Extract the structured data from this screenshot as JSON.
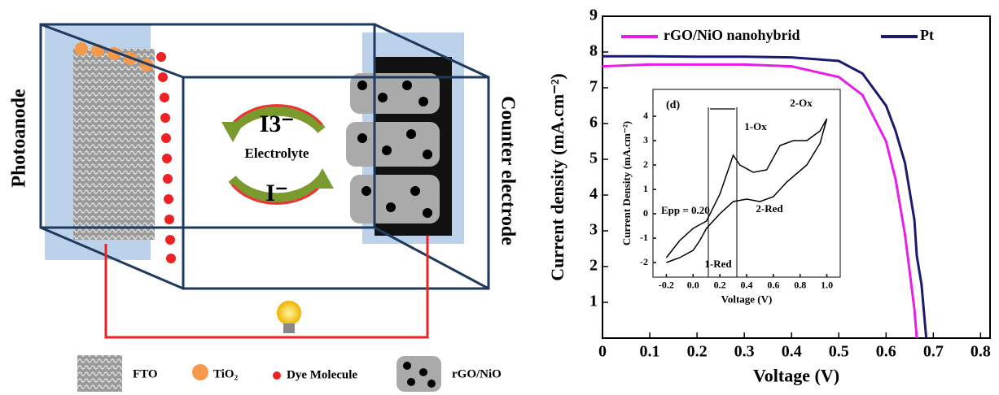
{
  "diagram": {
    "left_label": "Photoanode",
    "right_label": "Counter electrode",
    "center_label": "Electrolyte",
    "ion_top": "I3⁻",
    "ion_bottom": "I⁻",
    "legend": [
      "FTO",
      "TiO₂",
      "Dye Molecule",
      "rGO/NiO"
    ]
  },
  "chart_data": [
    {
      "type": "line",
      "xlabel": "Voltage (V)",
      "ylabel": "Current density (mA.cm⁻²)",
      "x": [
        0,
        0.1,
        0.2,
        0.3,
        0.4,
        0.45,
        0.5,
        0.55,
        0.6,
        0.62,
        0.64,
        0.66,
        0.665,
        0.675,
        0.685
      ],
      "series": [
        {
          "name": "rGO/NiO  nanohybrid",
          "color": "#e61ee6",
          "values": [
            7.6,
            7.65,
            7.65,
            7.65,
            7.6,
            7.45,
            7.3,
            6.8,
            5.5,
            4.45,
            2.9,
            0.8,
            0,
            null,
            null
          ]
        },
        {
          "name": "Pt",
          "color": "#1a1a6e",
          "values": [
            7.88,
            7.88,
            7.87,
            7.87,
            7.85,
            7.8,
            7.75,
            7.4,
            6.5,
            5.8,
            4.9,
            3.3,
            2.3,
            1.5,
            0
          ]
        }
      ],
      "xlim": [
        0,
        0.82
      ],
      "ylim": [
        0,
        9
      ],
      "xticks": [
        0,
        0.1,
        0.2,
        0.3,
        0.4,
        0.5,
        0.6,
        0.7,
        0.8
      ],
      "yticks": [
        1,
        2,
        3,
        4,
        5,
        6,
        7,
        8,
        9
      ]
    },
    {
      "type": "line",
      "panel": "(d)",
      "xlabel": "Voltage (V)",
      "ylabel": "Current Density (mA.cm⁻²)",
      "x": [
        -0.2,
        -0.1,
        0,
        0.1,
        0.2,
        0.3,
        0.35,
        0.45,
        0.55,
        0.65,
        0.75,
        0.85,
        0.95,
        1.0,
        0.95,
        0.85,
        0.7,
        0.6,
        0.5,
        0.4,
        0.3,
        0.2,
        0.1,
        0.05,
        0,
        -0.1,
        -0.2
      ],
      "series": [
        {
          "color": "#000000",
          "values": [
            -1.8,
            -1.1,
            -0.6,
            -0.3,
            0.8,
            2.4,
            2.0,
            1.7,
            1.8,
            2.8,
            3.0,
            3.0,
            3.4,
            3.9,
            2.9,
            2.0,
            1.3,
            0.7,
            0.5,
            0.6,
            0.5,
            0.0,
            -0.6,
            -1.1,
            -1.5,
            -1.8,
            -2.0
          ]
        }
      ],
      "xlim": [
        -0.3,
        1.1
      ],
      "ylim": [
        -2.6,
        5.1
      ],
      "xticks": [
        -0.2,
        {
          "value": 0,
          "label": "0.0"
        },
        0.2,
        0.4,
        0.6,
        0.8,
        {
          "value": 1,
          "label": "1.0"
        }
      ],
      "yticks": [
        -2,
        -1,
        0,
        1,
        2,
        3,
        4
      ],
      "annotations": [
        "Epp = 0.20",
        "1-Ox",
        "2-Ox",
        "1-Red",
        "2-Red"
      ]
    }
  ]
}
